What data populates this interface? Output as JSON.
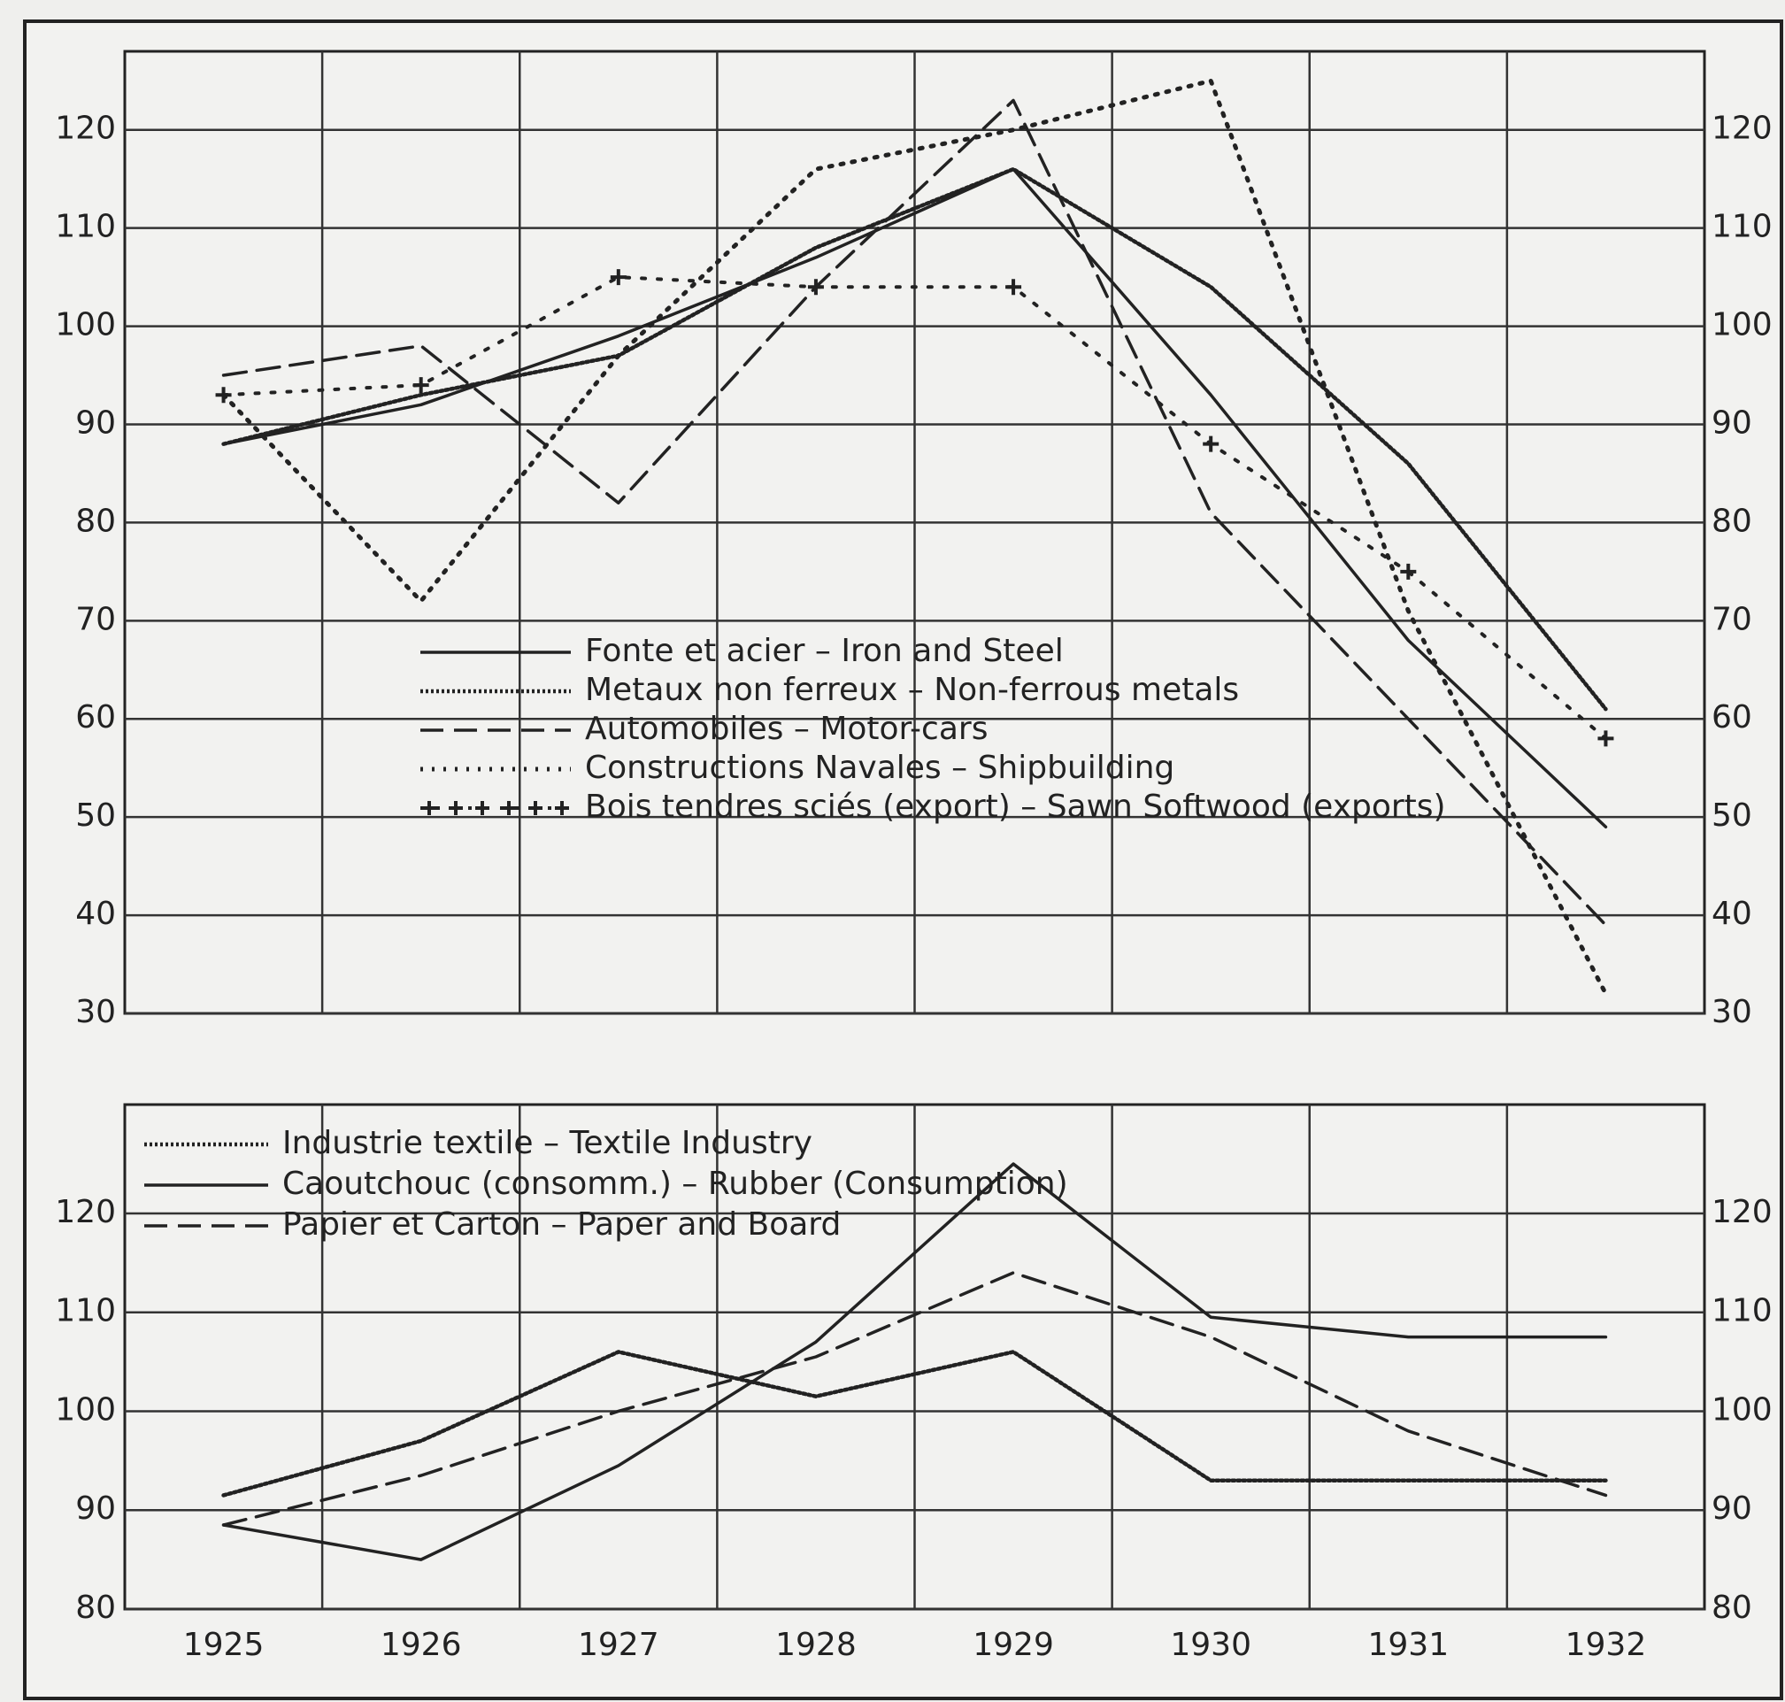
{
  "chart_data": [
    {
      "type": "line",
      "ylim": [
        30,
        128
      ],
      "yticks": [
        30,
        40,
        50,
        60,
        70,
        80,
        90,
        100,
        110,
        120
      ],
      "grid": true,
      "legend": "center",
      "series": [
        {
          "name": "Fonte et acier – Iron and Steel",
          "style": "solid",
          "color": "#222222",
          "values": [
            88,
            92,
            99,
            107,
            116,
            93,
            68,
            49
          ]
        },
        {
          "name": "Metaux non ferreux – Non-ferrous metals",
          "style": "dense",
          "color": "#222222",
          "values": [
            88,
            93,
            97,
            108,
            116,
            104,
            86,
            61
          ]
        },
        {
          "name": "Automobiles – Motor-cars",
          "style": "dashed",
          "color": "#222222",
          "values": [
            95,
            98,
            82,
            104,
            123,
            81,
            60,
            39
          ]
        },
        {
          "name": "Constructions Navales – Shipbuilding",
          "style": "dotted",
          "color": "#222222",
          "values": [
            93,
            72,
            97,
            116,
            120,
            125,
            71,
            32
          ]
        },
        {
          "name": "Bois tendres sciés (export) – Sawn Softwood (exports)",
          "style": "cross",
          "color": "#222222",
          "values": [
            93,
            94,
            105,
            104,
            104,
            88,
            75,
            58
          ]
        }
      ]
    },
    {
      "type": "line",
      "ylim": [
        80,
        131
      ],
      "yticks": [
        80,
        90,
        100,
        110,
        120
      ],
      "grid": true,
      "legend": "upper left",
      "categories": [
        "1925",
        "1926",
        "1927",
        "1928",
        "1929",
        "1930",
        "1931",
        "1932"
      ],
      "series": [
        {
          "name": "Industrie textile – Textile Industry",
          "style": "dense",
          "color": "#222222",
          "values": [
            91.5,
            97,
            106,
            101.5,
            106,
            93,
            93,
            93
          ]
        },
        {
          "name": "Caoutchouc (consomm.) – Rubber (Consumption)",
          "style": "solid",
          "color": "#222222",
          "values": [
            88.5,
            85,
            94.5,
            107,
            125,
            109.5,
            107.5,
            107.5
          ]
        },
        {
          "name": "Papier et Carton – Paper and Board",
          "style": "dashed",
          "color": "#222222",
          "values": [
            88.5,
            93.5,
            100,
            105.5,
            114,
            107.5,
            98,
            91.5
          ]
        }
      ]
    }
  ]
}
